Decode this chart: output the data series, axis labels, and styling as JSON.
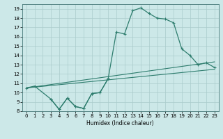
{
  "title": "",
  "xlabel": "Humidex (Indice chaleur)",
  "background_color": "#cce8e8",
  "grid_color": "#aacccc",
  "line_color": "#2e7d6e",
  "xlim": [
    -0.5,
    23.5
  ],
  "ylim": [
    8,
    19.5
  ],
  "xticks": [
    0,
    1,
    2,
    3,
    4,
    5,
    6,
    7,
    8,
    9,
    10,
    11,
    12,
    13,
    14,
    15,
    16,
    17,
    18,
    19,
    20,
    21,
    22,
    23
  ],
  "yticks": [
    8,
    9,
    10,
    11,
    12,
    13,
    14,
    15,
    16,
    17,
    18,
    19
  ],
  "main_curve_x": [
    0,
    1,
    3,
    4,
    5,
    6,
    7,
    8,
    9,
    10,
    11,
    12,
    13,
    14,
    15,
    16,
    17,
    18,
    19,
    20,
    21,
    22,
    23
  ],
  "main_curve_y": [
    10.5,
    10.7,
    9.3,
    8.2,
    9.4,
    8.5,
    8.3,
    9.9,
    10.0,
    11.5,
    16.5,
    16.3,
    18.8,
    19.1,
    18.5,
    18.0,
    17.9,
    17.5,
    14.7,
    14.0,
    13.0,
    13.2,
    12.7
  ],
  "jagged_x": [
    3,
    4,
    5,
    6,
    7,
    8,
    9,
    10
  ],
  "jagged_y": [
    9.3,
    8.2,
    9.4,
    8.5,
    8.3,
    9.9,
    10.0,
    11.5
  ],
  "straight_line1_x": [
    0,
    23
  ],
  "straight_line1_y": [
    10.5,
    12.5
  ],
  "straight_line2_x": [
    0,
    23
  ],
  "straight_line2_y": [
    10.5,
    13.3
  ]
}
